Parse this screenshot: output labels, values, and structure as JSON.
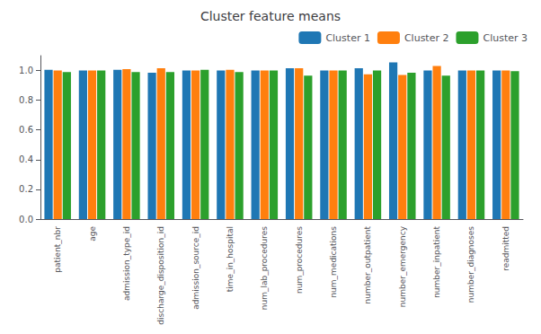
{
  "chart_data": {
    "type": "bar",
    "title": "Cluster feature means",
    "categories": [
      "patient_nbr",
      "age",
      "admission_type_id",
      "discharge_disposition_id",
      "admission_source_id",
      "time_in_hospital",
      "num_lab_procedures",
      "num_procedures",
      "num_medications",
      "number_outpatient",
      "number_emergency",
      "number_inpatient",
      "number_diagnoses",
      "readmitted"
    ],
    "series": [
      {
        "name": "Cluster 1",
        "color": "#1f77b4",
        "values": [
          1.005,
          1.0,
          1.005,
          0.985,
          1.0,
          1.0,
          1.0,
          1.015,
          1.0,
          1.015,
          1.055,
          1.0,
          1.0,
          1.0
        ]
      },
      {
        "name": "Cluster 2",
        "color": "#ff7f0e",
        "values": [
          1.0,
          1.0,
          1.01,
          1.015,
          1.0,
          1.005,
          1.0,
          1.015,
          1.0,
          0.975,
          0.97,
          1.03,
          1.0,
          1.0
        ]
      },
      {
        "name": "Cluster 3",
        "color": "#2ca02c",
        "values": [
          0.99,
          1.0,
          0.99,
          0.99,
          1.005,
          0.99,
          1.0,
          0.965,
          1.0,
          1.0,
          0.985,
          0.965,
          1.0,
          0.995
        ]
      }
    ],
    "ylim": [
      0.0,
      1.1
    ],
    "yticks": [
      {
        "value": 0,
        "label": "0.0"
      },
      0.2,
      0.4,
      0.6,
      0.8,
      {
        "value": 1,
        "label": "1.0"
      }
    ],
    "legend": "upper right",
    "grid": false
  }
}
